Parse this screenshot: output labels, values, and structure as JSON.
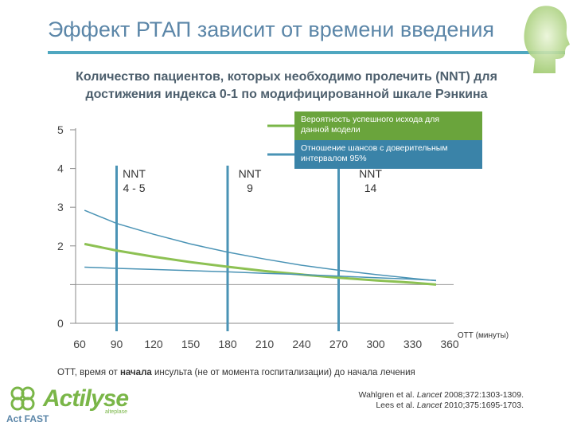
{
  "title": "Эффект РТАП зависит от времени введения",
  "subtitle_line1": "Количество пациентов, которых необходимо пролечить (NNT) для",
  "subtitle_line2": "достижения индекса 0-1 по модифицированной шкале Рэнкина",
  "footnote_prefix": "ОТТ, время от ",
  "footnote_bold": "начала",
  "footnote_suffix": " инсульта (не от момента госпитализации) до начала лечения",
  "refs": {
    "line1_pre": "Wahlgren et al. ",
    "line1_journal": "Lancet",
    "line1_post": " 2008;372:1303-1309.",
    "line2_pre": "Lees et al. ",
    "line2_journal": "Lancet",
    "line2_post": " 2010;375:1695-1703."
  },
  "logo": {
    "name": "Actilyse",
    "sub": "alteplase",
    "tagline": "Act FAST"
  },
  "colors": {
    "green": "#8dc153",
    "blue": "#4a93b5",
    "legend_green": "#7ab648",
    "legend_blue": "#4a93b5",
    "axis": "#888888",
    "title": "#5b86a8"
  },
  "chart_data": {
    "type": "line",
    "xlabel": "ОТТ (минуты)",
    "x_ticks": [
      60,
      90,
      120,
      150,
      180,
      210,
      240,
      270,
      300,
      330,
      360
    ],
    "xlim": [
      60,
      360
    ],
    "y_ticks": [
      0,
      1,
      2,
      3,
      4,
      5
    ],
    "y_tick_labels": [
      "0",
      "",
      "2",
      "3",
      "4",
      "5"
    ],
    "ylim": [
      0,
      5
    ],
    "legend": [
      {
        "label": "Вероятность успешного исхода для данной модели",
        "color": "green"
      },
      {
        "label": "Отношение шансов с доверительным интервалом 95%",
        "color": "blue"
      }
    ],
    "legend_position": "top-right",
    "series": [
      {
        "color": "green",
        "style": "bold",
        "x": [
          64,
          90,
          120,
          150,
          180,
          210,
          240,
          270,
          300,
          330,
          349
        ],
        "y": [
          2.05,
          1.88,
          1.72,
          1.58,
          1.46,
          1.35,
          1.26,
          1.18,
          1.11,
          1.05,
          1.0
        ]
      },
      {
        "color": "blue",
        "style": "thin",
        "x": [
          64,
          90,
          120,
          150,
          180,
          210,
          240,
          270,
          300,
          330,
          349
        ],
        "y": [
          2.92,
          2.58,
          2.3,
          2.05,
          1.84,
          1.66,
          1.5,
          1.37,
          1.26,
          1.16,
          1.1
        ]
      },
      {
        "color": "blue",
        "style": "thin",
        "x": [
          64,
          90,
          120,
          150,
          180,
          210,
          240,
          270,
          300,
          330,
          349
        ],
        "y": [
          1.45,
          1.42,
          1.39,
          1.36,
          1.33,
          1.29,
          1.26,
          1.22,
          1.18,
          1.14,
          1.11
        ]
      }
    ],
    "vertical_markers": [
      {
        "x": 90,
        "label_top": "NNT",
        "label_bottom": "4 - 5"
      },
      {
        "x": 180,
        "label_top": "NNT",
        "label_bottom": "9"
      },
      {
        "x": 270,
        "label_top": "NNT",
        "label_bottom": "14"
      }
    ]
  }
}
